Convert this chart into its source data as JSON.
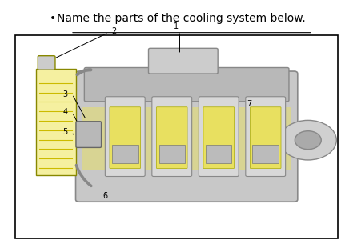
{
  "title": "Name the parts of the cooling system below.",
  "title_fontsize": 10,
  "bg_color": "#ffffff",
  "border_color": "#000000",
  "bullet": "•",
  "radiator_color": "#f5f0a0",
  "engine_body_color": "#d0d0d0",
  "coolant_highlight_color": "#e8e060"
}
